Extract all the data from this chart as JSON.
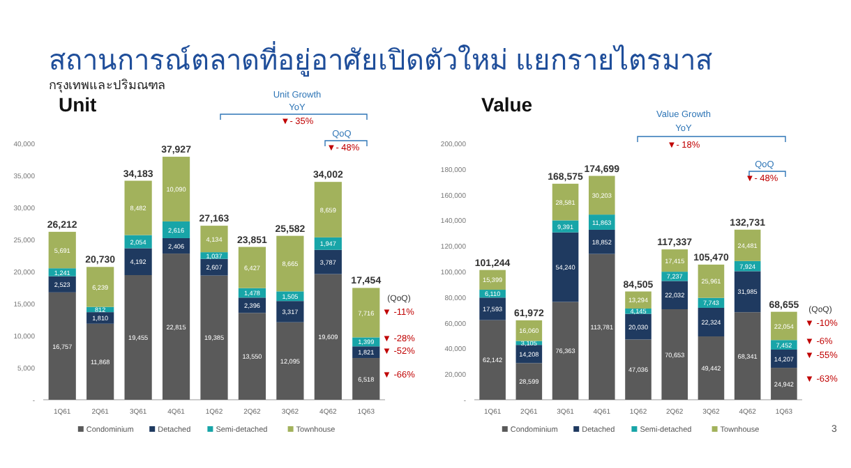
{
  "chart_data": [
    {
      "type": "bar",
      "stacked": true,
      "title": "Unit",
      "legend": "bottom",
      "grid": false,
      "categories": [
        "1Q61",
        "2Q61",
        "3Q61",
        "4Q61",
        "1Q62",
        "2Q62",
        "3Q62",
        "4Q62",
        "1Q63"
      ],
      "series": [
        {
          "name": "Condominium",
          "color": "#5a5a5a",
          "values": [
            16757,
            11868,
            19455,
            22815,
            19385,
            13550,
            12095,
            19609,
            6518
          ],
          "value_labels": [
            "16,757",
            "11,868",
            "19,455",
            "22,815",
            "19,385",
            "13,550",
            "12,095",
            "19,609",
            "6,518"
          ]
        },
        {
          "name": "Detached",
          "color": "#1f3a60",
          "values": [
            2523,
            1810,
            4192,
            2406,
            2607,
            2396,
            3317,
            3787,
            1821
          ],
          "value_labels": [
            "2,523",
            "1,810",
            "4,192",
            "2,406",
            "2,607",
            "2,396",
            "3,317",
            "3,787",
            "1,821"
          ]
        },
        {
          "name": "Semi-detached",
          "color": "#18a5a8",
          "values": [
            1241,
            812,
            2054,
            2616,
            1037,
            1478,
            1505,
            1947,
            1399
          ],
          "value_labels": [
            "1,241",
            "812",
            "2,054",
            "2,616",
            "1,037",
            "1,478",
            "1,505",
            "1,947",
            "1,399"
          ]
        },
        {
          "name": "Townhouse",
          "color": "#a2b25c",
          "values": [
            5691,
            6239,
            8482,
            10090,
            4134,
            6427,
            8665,
            8659,
            7716
          ],
          "value_labels": [
            "5,691",
            "6,239",
            "8,482",
            "10,090",
            "4,134",
            "6,427",
            "8,665",
            "8,659",
            "7,716"
          ]
        }
      ],
      "totals": [
        "26,212",
        "20,730",
        "34,183",
        "37,927",
        "27,163",
        "23,851",
        "25,582",
        "34,002",
        "17,454"
      ],
      "ylim": [
        0,
        40000
      ],
      "yticks": [
        {
          "value": 0,
          "label": "-"
        },
        {
          "value": 5000,
          "label": "5,000"
        },
        {
          "value": 10000,
          "label": "10,000"
        },
        {
          "value": 15000,
          "label": "15,000"
        },
        {
          "value": 20000,
          "label": "20,000"
        },
        {
          "value": 25000,
          "label": "25,000"
        },
        {
          "value": 30000,
          "label": "30,000"
        },
        {
          "value": 35000,
          "label": "35,000"
        },
        {
          "value": 40000,
          "label": "40,000"
        }
      ],
      "annotations": [
        "สถานการณ์ตลาดที่อยู่อาศัยเปิดตัวใหม่ แยกรายไตรมาส",
        "กรุงเทพและปริมณฑล",
        "Unit Growth",
        "YoY",
        "▼- 35%",
        "QoQ",
        "▼- 48%",
        "(QoQ)",
        "▼ -11%",
        "▼ -28%",
        "▼ -52%",
        "▼ -66%"
      ]
    },
    {
      "type": "bar",
      "stacked": true,
      "title": "Value",
      "legend": "bottom",
      "grid": false,
      "categories": [
        "1Q61",
        "2Q61",
        "3Q61",
        "4Q61",
        "1Q62",
        "2Q62",
        "3Q62",
        "4Q62",
        "1Q63"
      ],
      "series": [
        {
          "name": "Condominium",
          "color": "#5a5a5a",
          "values": [
            62142,
            28599,
            76363,
            113781,
            47036,
            70653,
            49442,
            68341,
            24942
          ],
          "value_labels": [
            "62,142",
            "28,599",
            "76,363",
            "113,781",
            "47,036",
            "70,653",
            "49,442",
            "68,341",
            "24,942"
          ]
        },
        {
          "name": "Detached",
          "color": "#1f3a60",
          "values": [
            17593,
            14208,
            54240,
            18852,
            20030,
            22032,
            22324,
            31985,
            14207
          ],
          "value_labels": [
            "17,593",
            "14,208",
            "54,240",
            "18,852",
            "20,030",
            "22,032",
            "22,324",
            "31,985",
            "14,207"
          ]
        },
        {
          "name": "Semi-detached",
          "color": "#18a5a8",
          "values": [
            6110,
            3105,
            9391,
            11863,
            4145,
            7237,
            7743,
            7924,
            7452
          ],
          "value_labels": [
            "6,110",
            "3,105",
            "9,391",
            "11,863",
            "4,145",
            "7,237",
            "7,743",
            "7,924",
            "7,452"
          ]
        },
        {
          "name": "Townhouse",
          "color": "#a2b25c",
          "values": [
            15399,
            16060,
            28581,
            30203,
            13294,
            17415,
            25961,
            24481,
            22054
          ],
          "value_labels": [
            "15,399",
            "16,060",
            "28,581",
            "30,203",
            "13,294",
            "17,415",
            "25,961",
            "24,481",
            "22,054"
          ]
        }
      ],
      "totals": [
        "101,244",
        "61,972",
        "168,575",
        "174,699",
        "84,505",
        "117,337",
        "105,470",
        "132,731",
        "68,655"
      ],
      "ylim": [
        0,
        200000
      ],
      "yticks": [
        {
          "value": 0,
          "label": "-"
        },
        {
          "value": 20000,
          "label": "20,000"
        },
        {
          "value": 40000,
          "label": "40,000"
        },
        {
          "value": 60000,
          "label": "60,000"
        },
        {
          "value": 80000,
          "label": "80,000"
        },
        {
          "value": 100000,
          "label": "100,000"
        },
        {
          "value": 120000,
          "label": "120,000"
        },
        {
          "value": 140000,
          "label": "140,000"
        },
        {
          "value": 160000,
          "label": "160,000"
        },
        {
          "value": 180000,
          "label": "180,000"
        },
        {
          "value": 200000,
          "label": "200,000"
        }
      ],
      "annotations": [
        "Value Growth",
        "YoY",
        "▼- 18%",
        "QoQ",
        "▼- 48%",
        "(QoQ)",
        "▼ -10%",
        "▼ -6%",
        "▼ -55%",
        "▼ -63%",
        "3"
      ]
    }
  ]
}
